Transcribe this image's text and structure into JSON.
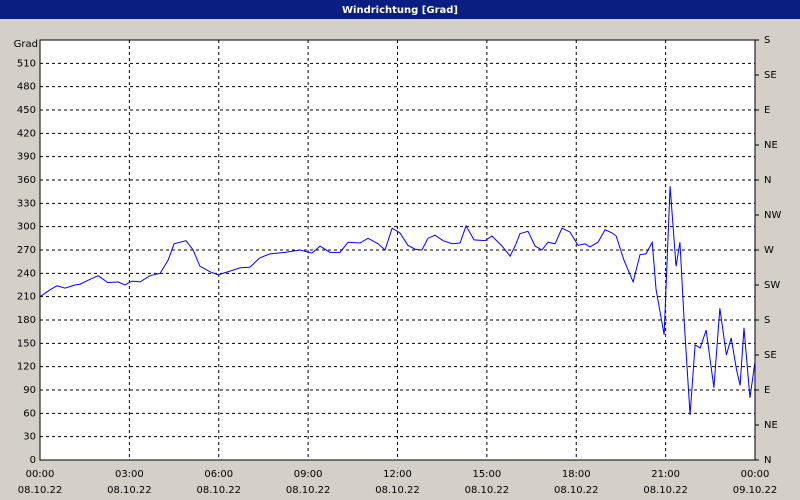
{
  "chart_data": {
    "type": "line",
    "title": "Windrichtung [Grad]",
    "y_label": "Grad",
    "x": [
      0,
      0.34,
      0.57,
      0.84,
      1.17,
      1.34,
      1.61,
      1.95,
      2.28,
      2.62,
      2.85,
      3.09,
      3.36,
      3.69,
      4.03,
      4.3,
      4.5,
      4.9,
      5.14,
      5.37,
      5.71,
      5.98,
      6.31,
      6.71,
      7.05,
      7.38,
      7.72,
      8.22,
      8.73,
      9.13,
      9.4,
      9.73,
      10.07,
      10.34,
      10.74,
      11.01,
      11.35,
      11.58,
      11.82,
      12.08,
      12.35,
      12.59,
      12.82,
      13.02,
      13.26,
      13.53,
      13.83,
      14.1,
      14.3,
      14.57,
      14.94,
      15.17,
      15.51,
      15.78,
      15.98,
      16.11,
      16.38,
      16.62,
      16.85,
      17.05,
      17.29,
      17.52,
      17.79,
      18.06,
      18.29,
      18.46,
      18.73,
      18.97,
      19.2,
      19.34,
      19.6,
      19.91,
      20.14,
      20.34,
      20.55,
      20.68,
      20.95,
      21.15,
      21.35,
      21.48,
      21.62,
      21.82,
      21.99,
      22.16,
      22.36,
      22.62,
      22.82,
      23.04,
      23.2,
      23.38,
      23.5,
      23.63,
      23.83,
      24.0
    ],
    "series": [
      {
        "name": "Windrichtung",
        "color": "#0000ff",
        "values": [
          210,
          219,
          224,
          221,
          225,
          226,
          231,
          237,
          228,
          229,
          225,
          230,
          229,
          237,
          240,
          257,
          278,
          282,
          270,
          249,
          242,
          238,
          242,
          247,
          248,
          260,
          265,
          267,
          270,
          266,
          275,
          267,
          267,
          280,
          279,
          285,
          278,
          270,
          298,
          292,
          276,
          271,
          270,
          285,
          289,
          282,
          278,
          279,
          301,
          283,
          282,
          288,
          275,
          262,
          278,
          291,
          294,
          275,
          270,
          280,
          278,
          298,
          293,
          276,
          278,
          274,
          280,
          296,
          292,
          288,
          257,
          229,
          264,
          265,
          280,
          219,
          161,
          352,
          249,
          280,
          180,
          58,
          148,
          144,
          167,
          93,
          195,
          135,
          157,
          116,
          96,
          170,
          80,
          126
        ]
      }
    ],
    "xlim": [
      0,
      24
    ],
    "xticks": [
      {
        "value": 0,
        "label": "00:00",
        "date": "08.10.22"
      },
      {
        "value": 3,
        "label": "03:00",
        "date": "08.10.22"
      },
      {
        "value": 6,
        "label": "06:00",
        "date": "08.10.22"
      },
      {
        "value": 9,
        "label": "09:00",
        "date": "08.10.22"
      },
      {
        "value": 12,
        "label": "12:00",
        "date": "08.10.22"
      },
      {
        "value": 15,
        "label": "15:00",
        "date": "08.10.22"
      },
      {
        "value": 18,
        "label": "18:00",
        "date": "08.10.22"
      },
      {
        "value": 21,
        "label": "21:00",
        "date": "08.10.22"
      },
      {
        "value": 24,
        "label": "00:00",
        "date": "09.10.22"
      }
    ],
    "ylim": [
      0,
      540
    ],
    "yticks": [
      0,
      30,
      60,
      90,
      120,
      150,
      180,
      210,
      240,
      270,
      300,
      330,
      360,
      390,
      420,
      450,
      480,
      510
    ],
    "y2lim": [
      0,
      540
    ],
    "y2ticks": [
      {
        "value": 0,
        "label": "N"
      },
      {
        "value": 45,
        "label": "NE"
      },
      {
        "value": 90,
        "label": "E"
      },
      {
        "value": 135,
        "label": "SE"
      },
      {
        "value": 180,
        "label": "S"
      },
      {
        "value": 225,
        "label": "SW"
      },
      {
        "value": 270,
        "label": "W"
      },
      {
        "value": 315,
        "label": "NW"
      },
      {
        "value": 360,
        "label": "N"
      },
      {
        "value": 405,
        "label": "NE"
      },
      {
        "value": 450,
        "label": "E"
      },
      {
        "value": 495,
        "label": "SE"
      },
      {
        "value": 540,
        "label": "S"
      }
    ],
    "grid": true
  }
}
